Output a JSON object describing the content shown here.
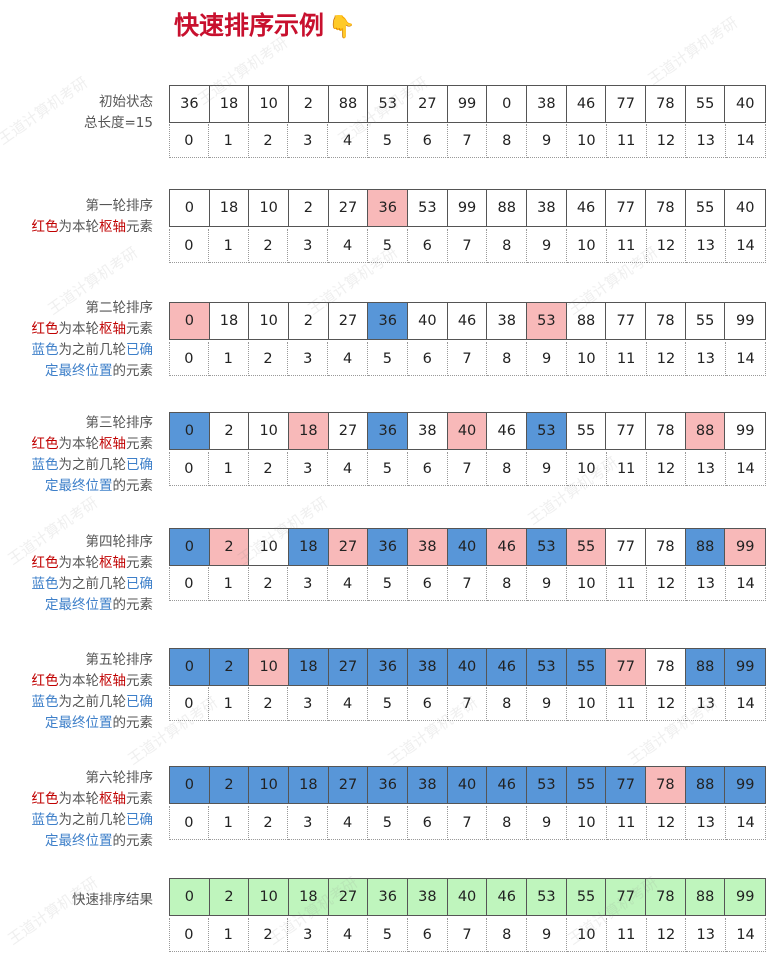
{
  "title": "快速排序示例",
  "title_emoji": "👇",
  "watermark": "王道计算机考研",
  "colors": {
    "pivot": "#f8b9b9",
    "fixed": "#5896d8",
    "final": "#bff5bd",
    "normal": "#ffffff",
    "title": "#c8102e",
    "red_text": "#c00000",
    "blue_text": "#3d7fc9"
  },
  "indices": [
    "0",
    "1",
    "2",
    "3",
    "4",
    "5",
    "6",
    "7",
    "8",
    "9",
    "10",
    "11",
    "12",
    "13",
    "14"
  ],
  "sections": [
    {
      "label_lines": [
        [
          {
            "t": "初始状态",
            "c": ""
          }
        ],
        [
          {
            "t": "总长度=15",
            "c": ""
          }
        ]
      ],
      "values": [
        "36",
        "18",
        "10",
        "2",
        "88",
        "53",
        "27",
        "99",
        "0",
        "38",
        "46",
        "77",
        "78",
        "55",
        "40"
      ],
      "colors": [
        "w",
        "w",
        "w",
        "w",
        "w",
        "w",
        "w",
        "w",
        "w",
        "w",
        "w",
        "w",
        "w",
        "w",
        "w"
      ]
    },
    {
      "label_lines": [
        [
          {
            "t": "第一轮排序",
            "c": ""
          }
        ],
        [
          {
            "t": "红色",
            "c": "red"
          },
          {
            "t": "为本轮",
            "c": ""
          },
          {
            "t": "枢轴",
            "c": "red"
          },
          {
            "t": "元素",
            "c": ""
          }
        ]
      ],
      "values": [
        "0",
        "18",
        "10",
        "2",
        "27",
        "36",
        "53",
        "99",
        "88",
        "38",
        "46",
        "77",
        "78",
        "55",
        "40"
      ],
      "colors": [
        "w",
        "w",
        "w",
        "w",
        "w",
        "r",
        "w",
        "w",
        "w",
        "w",
        "w",
        "w",
        "w",
        "w",
        "w"
      ]
    },
    {
      "label_lines": [
        [
          {
            "t": "第二轮排序",
            "c": ""
          }
        ],
        [
          {
            "t": "红色",
            "c": "red"
          },
          {
            "t": "为本轮",
            "c": ""
          },
          {
            "t": "枢轴",
            "c": "red"
          },
          {
            "t": "元素",
            "c": ""
          }
        ],
        [
          {
            "t": "蓝色",
            "c": "blue"
          },
          {
            "t": "为之前几轮",
            "c": ""
          },
          {
            "t": "已确",
            "c": "blue"
          }
        ],
        [
          {
            "t": "定最终位置",
            "c": "blue"
          },
          {
            "t": "的元素",
            "c": ""
          }
        ]
      ],
      "values": [
        "0",
        "18",
        "10",
        "2",
        "27",
        "36",
        "40",
        "46",
        "38",
        "53",
        "88",
        "77",
        "78",
        "55",
        "99"
      ],
      "colors": [
        "r",
        "w",
        "w",
        "w",
        "w",
        "b",
        "w",
        "w",
        "w",
        "r",
        "w",
        "w",
        "w",
        "w",
        "w"
      ]
    },
    {
      "label_lines": [
        [
          {
            "t": "第三轮排序",
            "c": ""
          }
        ],
        [
          {
            "t": "红色",
            "c": "red"
          },
          {
            "t": "为本轮",
            "c": ""
          },
          {
            "t": "枢轴",
            "c": "red"
          },
          {
            "t": "元素",
            "c": ""
          }
        ],
        [
          {
            "t": "蓝色",
            "c": "blue"
          },
          {
            "t": "为之前几轮",
            "c": ""
          },
          {
            "t": "已确",
            "c": "blue"
          }
        ],
        [
          {
            "t": "定最终位置",
            "c": "blue"
          },
          {
            "t": "的元素",
            "c": ""
          }
        ]
      ],
      "values": [
        "0",
        "2",
        "10",
        "18",
        "27",
        "36",
        "38",
        "40",
        "46",
        "53",
        "55",
        "77",
        "78",
        "88",
        "99"
      ],
      "colors": [
        "b",
        "w",
        "w",
        "r",
        "w",
        "b",
        "w",
        "r",
        "w",
        "b",
        "w",
        "w",
        "w",
        "r",
        "w"
      ]
    },
    {
      "label_lines": [
        [
          {
            "t": "第四轮排序",
            "c": ""
          }
        ],
        [
          {
            "t": "红色",
            "c": "red"
          },
          {
            "t": "为本轮",
            "c": ""
          },
          {
            "t": "枢轴",
            "c": "red"
          },
          {
            "t": "元素",
            "c": ""
          }
        ],
        [
          {
            "t": "蓝色",
            "c": "blue"
          },
          {
            "t": "为之前几轮",
            "c": ""
          },
          {
            "t": "已确",
            "c": "blue"
          }
        ],
        [
          {
            "t": "定最终位置",
            "c": "blue"
          },
          {
            "t": "的元素",
            "c": ""
          }
        ]
      ],
      "values": [
        "0",
        "2",
        "10",
        "18",
        "27",
        "36",
        "38",
        "40",
        "46",
        "53",
        "55",
        "77",
        "78",
        "88",
        "99"
      ],
      "colors": [
        "b",
        "r",
        "w",
        "b",
        "r",
        "b",
        "r",
        "b",
        "r",
        "b",
        "r",
        "w",
        "w",
        "b",
        "r"
      ]
    },
    {
      "label_lines": [
        [
          {
            "t": "第五轮排序",
            "c": ""
          }
        ],
        [
          {
            "t": "红色",
            "c": "red"
          },
          {
            "t": "为本轮",
            "c": ""
          },
          {
            "t": "枢轴",
            "c": "red"
          },
          {
            "t": "元素",
            "c": ""
          }
        ],
        [
          {
            "t": "蓝色",
            "c": "blue"
          },
          {
            "t": "为之前几轮",
            "c": ""
          },
          {
            "t": "已确",
            "c": "blue"
          }
        ],
        [
          {
            "t": "定最终位置",
            "c": "blue"
          },
          {
            "t": "的元素",
            "c": ""
          }
        ]
      ],
      "values": [
        "0",
        "2",
        "10",
        "18",
        "27",
        "36",
        "38",
        "40",
        "46",
        "53",
        "55",
        "77",
        "78",
        "88",
        "99"
      ],
      "colors": [
        "b",
        "b",
        "r",
        "b",
        "b",
        "b",
        "b",
        "b",
        "b",
        "b",
        "b",
        "r",
        "w",
        "b",
        "b"
      ]
    },
    {
      "label_lines": [
        [
          {
            "t": "第六轮排序",
            "c": ""
          }
        ],
        [
          {
            "t": "红色",
            "c": "red"
          },
          {
            "t": "为本轮",
            "c": ""
          },
          {
            "t": "枢轴",
            "c": "red"
          },
          {
            "t": "元素",
            "c": ""
          }
        ],
        [
          {
            "t": "蓝色",
            "c": "blue"
          },
          {
            "t": "为之前几轮",
            "c": ""
          },
          {
            "t": "已确",
            "c": "blue"
          }
        ],
        [
          {
            "t": "定最终位置",
            "c": "blue"
          },
          {
            "t": "的元素",
            "c": ""
          }
        ]
      ],
      "values": [
        "0",
        "2",
        "10",
        "18",
        "27",
        "36",
        "38",
        "40",
        "46",
        "53",
        "55",
        "77",
        "78",
        "88",
        "99"
      ],
      "colors": [
        "b",
        "b",
        "b",
        "b",
        "b",
        "b",
        "b",
        "b",
        "b",
        "b",
        "b",
        "b",
        "r",
        "b",
        "b"
      ]
    },
    {
      "label_lines": [
        [
          {
            "t": "快速排序结果",
            "c": ""
          }
        ]
      ],
      "values": [
        "0",
        "2",
        "10",
        "18",
        "27",
        "36",
        "38",
        "40",
        "46",
        "53",
        "55",
        "77",
        "78",
        "88",
        "99"
      ],
      "colors": [
        "g",
        "g",
        "g",
        "g",
        "g",
        "g",
        "g",
        "g",
        "g",
        "g",
        "g",
        "g",
        "g",
        "g",
        "g"
      ]
    }
  ]
}
